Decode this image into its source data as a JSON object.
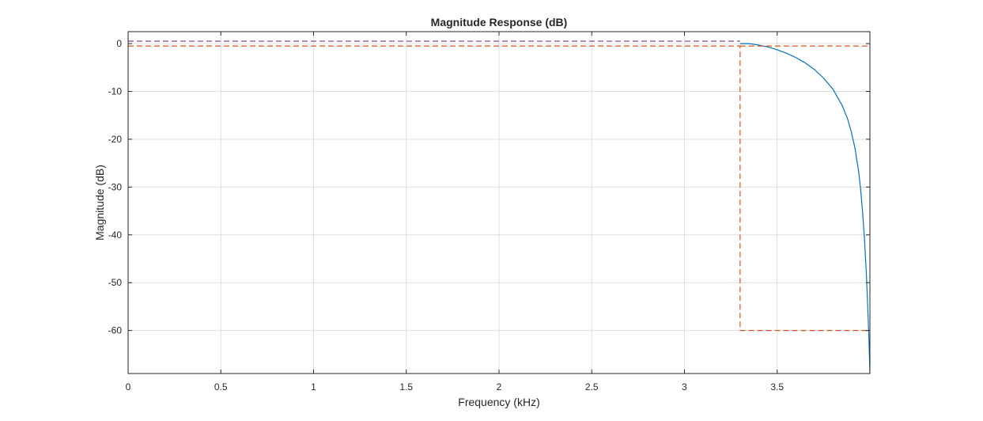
{
  "chart_data": {
    "type": "line",
    "title": "Magnitude Response (dB)",
    "xlabel": "Frequency (kHz)",
    "ylabel": "Magnitude (dB)",
    "xlim": [
      0,
      4
    ],
    "ylim": [
      -69,
      2.5
    ],
    "grid": true,
    "x_ticks": [
      0,
      0.5,
      1,
      1.5,
      2,
      2.5,
      3,
      3.5
    ],
    "x_tick_labels": [
      "0",
      "0.5",
      "1",
      "1.5",
      "2",
      "2.5",
      "3",
      "3.5"
    ],
    "y_ticks": [
      0,
      -10,
      -20,
      -30,
      -40,
      -50,
      -60
    ],
    "y_tick_labels": [
      "0",
      "-10",
      "-20",
      "-30",
      "-40",
      "-50",
      "-60"
    ],
    "series": [
      {
        "color": "#0072BD",
        "style": "solid",
        "x": [
          3.3,
          3.35,
          3.4,
          3.45,
          3.5,
          3.55,
          3.6,
          3.65,
          3.7,
          3.75,
          3.8,
          3.85,
          3.88,
          3.9,
          3.92,
          3.94,
          3.95,
          3.96,
          3.97,
          3.98,
          3.985,
          3.99,
          3.995,
          4.0
        ],
        "y": [
          0,
          0,
          -0.3,
          -0.7,
          -1.3,
          -2.0,
          -2.9,
          -4.0,
          -5.4,
          -7.2,
          -9.5,
          -12.9,
          -15.8,
          -18.5,
          -22.0,
          -27.0,
          -30.5,
          -35.0,
          -40.5,
          -47.5,
          -52.0,
          -57.0,
          -62.0,
          -69.0
        ]
      },
      {
        "color": "#D95319",
        "style": "dashed",
        "x": [
          0,
          3.3,
          3.3,
          4.0
        ],
        "y": [
          -0.5,
          -0.5,
          -60,
          -60
        ]
      },
      {
        "color": "#D95319",
        "style": "dashed",
        "x": [
          3.3,
          4.0
        ],
        "y": [
          -0.5,
          -0.5
        ]
      },
      {
        "color": "#7E2F8E",
        "style": "dashed",
        "x": [
          0,
          3.3
        ],
        "y": [
          0.5,
          0.5
        ]
      }
    ]
  }
}
